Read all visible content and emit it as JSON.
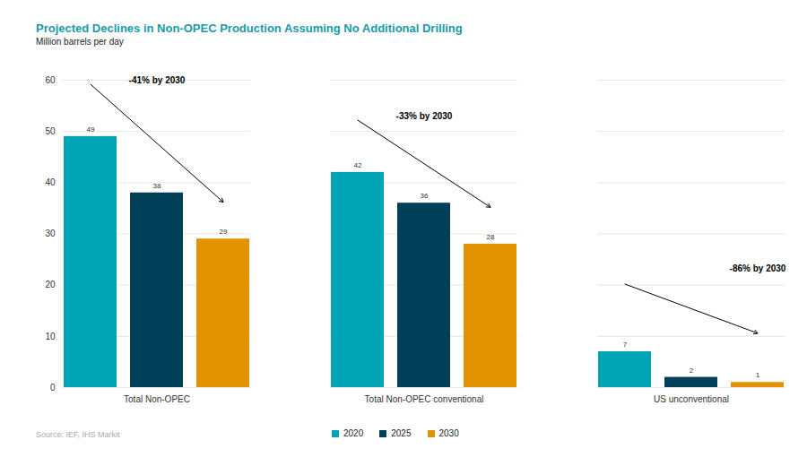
{
  "chart_data": {
    "type": "bar",
    "title": "Projected Declines in Non-OPEC Production Assuming No Additional Drilling",
    "subtitle": "Million barrels per day",
    "source": "Source: IEF, IHS Markit",
    "categories": [
      "Total Non-OPEC",
      "Total Non-OPEC conventional",
      "US unconventional"
    ],
    "series": [
      {
        "name": "2020",
        "color": "#00a5b5",
        "values": [
          49,
          42,
          7
        ]
      },
      {
        "name": "2025",
        "color": "#003f58",
        "values": [
          38,
          36,
          2
        ]
      },
      {
        "name": "2030",
        "color": "#e39300",
        "values": [
          29,
          28,
          1
        ]
      }
    ],
    "annotations": [
      {
        "category": "Total Non-OPEC",
        "text": "-41% by 2030"
      },
      {
        "category": "Total Non-OPEC conventional",
        "text": "-33% by 2030"
      },
      {
        "category": "US unconventional",
        "text": "-86% by 2030"
      }
    ],
    "ylim": [
      0,
      60
    ],
    "yticks": [
      0,
      10,
      20,
      30,
      40,
      50,
      60
    ],
    "grid": true,
    "data_labels": true,
    "legend": "bottom"
  }
}
